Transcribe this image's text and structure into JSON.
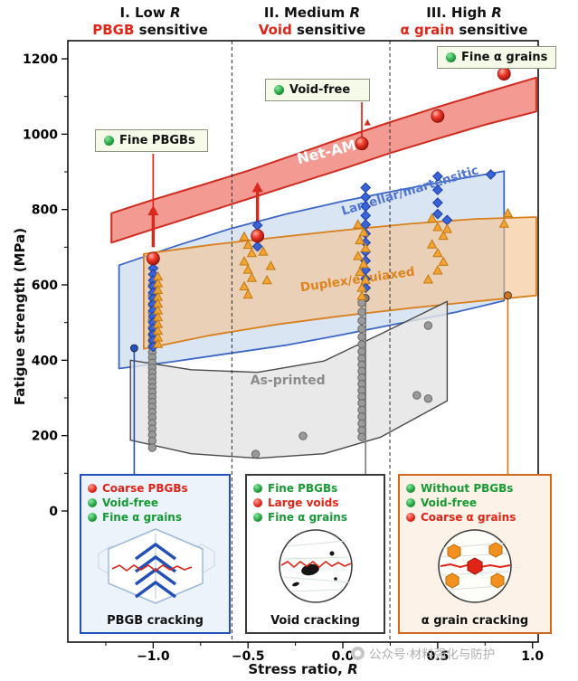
{
  "header": {
    "regions": [
      {
        "line1_prefix": "I. Low ",
        "line1_italic": "R",
        "keyword": "PBGB",
        "rest": " sensitive"
      },
      {
        "line1_prefix": "II. Medium ",
        "line1_italic": "R",
        "keyword": "Void",
        "rest": " sensitive"
      },
      {
        "line1_prefix": "III. High ",
        "line1_italic": "R",
        "keyword": "α grain",
        "rest": " sensitive"
      }
    ]
  },
  "axes": {
    "y_label": "Fatigue strength (MPa)",
    "x_label_prefix": "Stress ratio, ",
    "x_label_italic": "R",
    "y_ticks": [
      0,
      200,
      400,
      600,
      800,
      1000,
      1200
    ],
    "y_minor_ticks": [
      100,
      300,
      500,
      700,
      900,
      1100
    ],
    "x_ticks": [
      -1.0,
      -0.5,
      0.0,
      0.5,
      1.0
    ],
    "x_tick_labels": [
      "−1.0",
      "−0.5",
      "0.0",
      "0.5",
      "1.0"
    ],
    "x_minor_ticks": [
      -1.25,
      -0.75,
      -0.25,
      0.25,
      0.75
    ]
  },
  "callouts": [
    {
      "label": "Fine PBGBs"
    },
    {
      "label": "Void-free"
    },
    {
      "label": "Fine α grains"
    }
  ],
  "panels": [
    {
      "caption": "PBGB cracking",
      "items": [
        {
          "dot": "red",
          "label": "Coarse PBGBs"
        },
        {
          "dot": "green",
          "label": "Void-free"
        },
        {
          "dot": "green",
          "label": "Fine α grains"
        }
      ]
    },
    {
      "caption": "Void cracking",
      "items": [
        {
          "dot": "green",
          "label": "Fine PBGBs"
        },
        {
          "dot": "red",
          "label": "Large voids"
        },
        {
          "dot": "green",
          "label": "Fine α grains"
        }
      ]
    },
    {
      "caption": "α grain cracking",
      "items": [
        {
          "dot": "green",
          "label": "Without PBGBs"
        },
        {
          "dot": "green",
          "label": "Void-free"
        },
        {
          "dot": "red",
          "label": "Coarse α grains"
        }
      ]
    }
  ],
  "watermark": {
    "text": "公众号·材料强化与防护"
  },
  "colors": {
    "highlight_red": "#e02417",
    "green": "#169a33",
    "blue": "#2350b8",
    "orange": "#d2751f",
    "gray": "#7d7d7d"
  },
  "chart_data": {
    "type": "scatter",
    "xlabel": "Stress ratio, R",
    "ylabel": "Fatigue strength (MPa)",
    "xlim": [
      -1.45,
      1.03
    ],
    "ylim": [
      0,
      1200
    ],
    "grid": false,
    "dividers_x": [
      -0.585,
      0.248
    ],
    "bands": [
      {
        "name": "Lamellar/martensitic",
        "fill": "#c3d5ec",
        "fill_opacity": 0.62,
        "stroke": "#3c66c4",
        "stroke_width": 1.8,
        "upper": [
          [
            -1.18,
            652
          ],
          [
            -0.9,
            700
          ],
          [
            -0.6,
            748
          ],
          [
            -0.3,
            788
          ],
          [
            0,
            822
          ],
          [
            0.3,
            852
          ],
          [
            0.6,
            880
          ],
          [
            0.85,
            902
          ]
        ],
        "lower": [
          [
            -1.18,
            378
          ],
          [
            -0.9,
            396
          ],
          [
            -0.6,
            418
          ],
          [
            -0.3,
            440
          ],
          [
            0,
            468
          ],
          [
            0.3,
            498
          ],
          [
            0.6,
            528
          ],
          [
            0.85,
            558
          ]
        ]
      },
      {
        "name": "Duplex/equiaxed",
        "fill": "#f3c28d",
        "fill_opacity": 0.6,
        "stroke": "#d87f1e",
        "stroke_width": 1.8,
        "upper": [
          [
            -1.05,
            682
          ],
          [
            -0.7,
            706
          ],
          [
            -0.35,
            726
          ],
          [
            0,
            745
          ],
          [
            0.35,
            762
          ],
          [
            0.7,
            775
          ],
          [
            1.02,
            780
          ]
        ],
        "lower": [
          [
            -1.05,
            430
          ],
          [
            -0.7,
            466
          ],
          [
            -0.35,
            495
          ],
          [
            0,
            518
          ],
          [
            0.35,
            538
          ],
          [
            0.7,
            556
          ],
          [
            1.02,
            572
          ]
        ]
      },
      {
        "name": "As-printed",
        "fill": "#e4e4e4",
        "fill_opacity": 0.82,
        "stroke": "#4a4a4a",
        "stroke_width": 1.4,
        "upper": [
          [
            -1.12,
            400
          ],
          [
            -0.8,
            375
          ],
          [
            -0.45,
            368
          ],
          [
            -0.1,
            398
          ],
          [
            0.2,
            470
          ],
          [
            0.55,
            556
          ]
        ],
        "lower": [
          [
            -1.12,
            188
          ],
          [
            -0.8,
            152
          ],
          [
            -0.45,
            140
          ],
          [
            -0.1,
            152
          ],
          [
            0.2,
            196
          ],
          [
            0.55,
            292
          ]
        ]
      },
      {
        "name": "Net-AM",
        "fill": "#f08178",
        "fill_opacity": 0.8,
        "stroke": "#cf2b1f",
        "stroke_width": 2,
        "upper": [
          [
            -1.22,
            790
          ],
          [
            -1.0,
            826
          ],
          [
            -0.75,
            864
          ],
          [
            -0.5,
            903
          ],
          [
            -0.25,
            946
          ],
          [
            0,
            990
          ],
          [
            0.25,
            1032
          ],
          [
            0.5,
            1072
          ],
          [
            0.75,
            1110
          ],
          [
            1.02,
            1150
          ]
        ],
        "lower": [
          [
            -1.22,
            712
          ],
          [
            -1.0,
            748
          ],
          [
            -0.75,
            788
          ],
          [
            -0.5,
            828
          ],
          [
            -0.25,
            868
          ],
          [
            0,
            908
          ],
          [
            0.25,
            950
          ],
          [
            0.5,
            988
          ],
          [
            0.75,
            1025
          ],
          [
            1.02,
            1060
          ]
        ]
      }
    ],
    "band_labels": [
      {
        "text": "Net-AM",
        "x": -0.08,
        "v": 940,
        "rotate": -14,
        "color": "#ffffff",
        "size": 16
      },
      {
        "text": "Lamellar/martensitic",
        "x": 0.36,
        "v": 840,
        "rotate": -17,
        "color": "#4f74d2",
        "size": 13.5
      },
      {
        "text": "Duplex/equiaxed",
        "x": 0.08,
        "v": 604,
        "rotate": -8,
        "color": "#df831c",
        "size": 13.5
      },
      {
        "text": "As-printed",
        "x": -0.29,
        "v": 336,
        "rotate": 0,
        "color": "#8b8b8b",
        "size": 14
      }
    ],
    "series": [
      {
        "name": "As-printed",
        "marker": "circle",
        "color": "#9a9a9a",
        "edge": "#666666",
        "points": [
          [
            -1.005,
            598
          ],
          [
            -1.005,
            572
          ],
          [
            -1.005,
            548
          ],
          [
            -1.005,
            526
          ],
          [
            -1.005,
            505
          ],
          [
            -1.005,
            486
          ],
          [
            -1.005,
            468
          ],
          [
            -1.005,
            452
          ],
          [
            -1.005,
            436
          ],
          [
            -1.005,
            421
          ],
          [
            -1.005,
            407
          ],
          [
            -1.005,
            393
          ],
          [
            -1.005,
            380
          ],
          [
            -1.005,
            367
          ],
          [
            -1.005,
            354
          ],
          [
            -1.005,
            341
          ],
          [
            -1.005,
            328
          ],
          [
            -1.005,
            315
          ],
          [
            -1.005,
            302
          ],
          [
            -1.005,
            289
          ],
          [
            -1.005,
            276
          ],
          [
            -1.005,
            262
          ],
          [
            -1.005,
            248
          ],
          [
            -1.005,
            233
          ],
          [
            -1.005,
            218
          ],
          [
            -1.005,
            202
          ],
          [
            -1.005,
            186
          ],
          [
            -1.005,
            168
          ],
          [
            -0.46,
            151
          ],
          [
            -0.21,
            199
          ],
          [
            0.1,
            552
          ],
          [
            0.1,
            528
          ],
          [
            0.1,
            505
          ],
          [
            0.1,
            483
          ],
          [
            0.1,
            462
          ],
          [
            0.1,
            442
          ],
          [
            0.1,
            423
          ],
          [
            0.1,
            405
          ],
          [
            0.1,
            388
          ],
          [
            0.1,
            371
          ],
          [
            0.1,
            354
          ],
          [
            0.1,
            337
          ],
          [
            0.1,
            320
          ],
          [
            0.1,
            303
          ],
          [
            0.1,
            286
          ],
          [
            0.1,
            268
          ],
          [
            0.1,
            250
          ],
          [
            0.1,
            232
          ],
          [
            0.1,
            214
          ],
          [
            0.1,
            196
          ],
          [
            0.39,
            307
          ],
          [
            0.45,
            492
          ],
          [
            0.45,
            298
          ]
        ]
      },
      {
        "name": "Lamellar/martensitic",
        "marker": "diamond",
        "color": "#3a63d6",
        "edge": "#1c3da6",
        "points": [
          [
            -1.0,
            644
          ],
          [
            -1.0,
            628
          ],
          [
            -1.0,
            612
          ],
          [
            -1.0,
            596
          ],
          [
            -1.0,
            580
          ],
          [
            -1.0,
            564
          ],
          [
            -1.0,
            548
          ],
          [
            -1.0,
            532
          ],
          [
            -1.0,
            516
          ],
          [
            -1.0,
            500
          ],
          [
            -1.0,
            484
          ],
          [
            -1.0,
            468
          ],
          [
            -1.0,
            452
          ],
          [
            -1.0,
            436
          ],
          [
            -0.45,
            758
          ],
          [
            -0.45,
            702
          ],
          [
            0.12,
            858
          ],
          [
            0.12,
            833
          ],
          [
            0.12,
            808
          ],
          [
            0.12,
            784
          ],
          [
            0.12,
            760
          ],
          [
            0.12,
            736
          ],
          [
            0.12,
            712
          ],
          [
            0.12,
            688
          ],
          [
            0.12,
            664
          ],
          [
            0.12,
            640
          ],
          [
            0.12,
            616
          ],
          [
            0.12,
            592
          ],
          [
            0.5,
            888
          ],
          [
            0.5,
            852
          ],
          [
            0.5,
            818
          ],
          [
            0.5,
            788
          ],
          [
            0.55,
            772
          ],
          [
            0.78,
            893
          ]
        ]
      },
      {
        "name": "Duplex/equiaxed",
        "marker": "triangle",
        "color": "#f5a333",
        "edge": "#c27a0e",
        "points": [
          [
            -0.975,
            622
          ],
          [
            -0.975,
            604
          ],
          [
            -0.975,
            586
          ],
          [
            -0.975,
            568
          ],
          [
            -0.975,
            550
          ],
          [
            -0.975,
            532
          ],
          [
            -0.975,
            514
          ],
          [
            -0.975,
            496
          ],
          [
            -0.975,
            478
          ],
          [
            -0.975,
            460
          ],
          [
            -0.975,
            443
          ],
          [
            -0.52,
            728
          ],
          [
            -0.5,
            706
          ],
          [
            -0.48,
            684
          ],
          [
            -0.52,
            662
          ],
          [
            -0.5,
            640
          ],
          [
            -0.48,
            618
          ],
          [
            -0.52,
            596
          ],
          [
            -0.5,
            574
          ],
          [
            -0.42,
            688
          ],
          [
            -0.38,
            650
          ],
          [
            -0.4,
            612
          ],
          [
            0.08,
            760
          ],
          [
            0.11,
            739
          ],
          [
            0.09,
            718
          ],
          [
            0.12,
            697
          ],
          [
            0.08,
            676
          ],
          [
            0.11,
            655
          ],
          [
            0.09,
            634
          ],
          [
            0.12,
            613
          ],
          [
            0.1,
            592
          ],
          [
            0.1,
            570
          ],
          [
            0.47,
            776
          ],
          [
            0.5,
            753
          ],
          [
            0.53,
            730
          ],
          [
            0.47,
            707
          ],
          [
            0.5,
            684
          ],
          [
            0.53,
            661
          ],
          [
            0.5,
            638
          ],
          [
            0.45,
            614
          ],
          [
            0.55,
            748
          ],
          [
            0.87,
            790
          ],
          [
            0.85,
            762
          ]
        ]
      },
      {
        "name": "Net-AM",
        "marker": "sphere",
        "color": "#e5352b",
        "edge": "#8c0d03",
        "points": [
          [
            -1.0,
            670
          ],
          [
            -0.45,
            730
          ],
          [
            0.1,
            975
          ],
          [
            0.5,
            1048
          ],
          [
            0.85,
            1160
          ]
        ]
      },
      {
        "name": "Net-AM marks",
        "marker": "triangle-small",
        "color": "#d9281c",
        "edge": "#9c0f04",
        "points": [
          [
            0.13,
            1030
          ]
        ]
      }
    ],
    "annotations": {
      "pins": [
        {
          "x": -1.1,
          "v": 432,
          "color": "#2350b8"
        },
        {
          "x": 0.12,
          "v": 565,
          "color": "#7d7d7d"
        },
        {
          "x": 0.87,
          "v": 572,
          "color": "#d2751f"
        }
      ],
      "callout_stems": [
        {
          "x": -1.0,
          "v": 795
        },
        {
          "x": 0.1,
          "v": 985
        },
        {
          "x": 0.85,
          "v": 1162
        }
      ],
      "arrows": [
        {
          "x": -1.0,
          "from": 700,
          "to": 806
        },
        {
          "x": -0.45,
          "from": 756,
          "to": 868
        }
      ]
    }
  }
}
